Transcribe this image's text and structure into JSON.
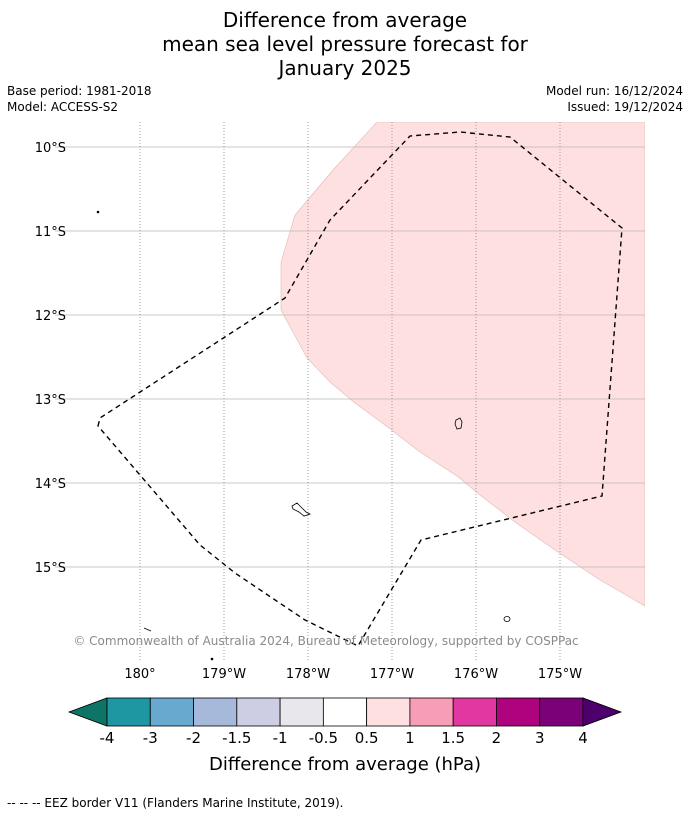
{
  "title": {
    "line1": "Difference from average",
    "line2": "mean sea level pressure forecast for",
    "line3": "January 2025"
  },
  "meta": {
    "base_period": "Base period: 1981-2018",
    "model": "Model: ACCESS-S2",
    "model_run": "Model run: 16/12/2024",
    "issued": "Issued: 19/12/2024"
  },
  "map": {
    "latitude_labels": [
      "10°S",
      "11°S",
      "12°S",
      "13°S",
      "14°S",
      "15°S"
    ],
    "longitude_labels": [
      "180°",
      "179°W",
      "178°W",
      "177°W",
      "176°W",
      "175°W"
    ],
    "copyright": "© Commonwealth of Australia 2024, Bureau of Meteorology, supported by COSPPac",
    "anomaly_shading_color": "#fde0df",
    "eez_border_style": "dashed"
  },
  "colorbar": {
    "title": "Difference from average (hPa)",
    "tick_labels": [
      "-4",
      "-3",
      "-2",
      "-1.5",
      "-1",
      "-0.5",
      "0.5",
      "1",
      "1.5",
      "2",
      "3",
      "4"
    ],
    "colors": [
      "#0e7466",
      "#1e97a3",
      "#67a9cf",
      "#a7b9da",
      "#cdcde3",
      "#e8e7ec",
      "#ffffff",
      "#fde0df",
      "#f89db7",
      "#e038a0",
      "#ae027f",
      "#7a0177",
      "#4d006b"
    ]
  },
  "footer": {
    "legend_line": "--  --  -- EEZ border V11 (Flanders Marine Institute, 2019)."
  }
}
